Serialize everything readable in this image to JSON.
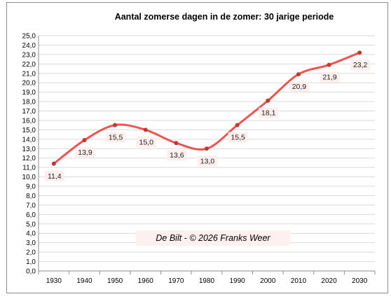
{
  "chart_data": {
    "type": "line",
    "title": "Aantal zomerse dagen in de zomer:  30 jarige periode",
    "xlabel": "",
    "ylabel": "",
    "x": [
      1930,
      1940,
      1950,
      1960,
      1970,
      1980,
      1990,
      2000,
      2010,
      2020,
      2030
    ],
    "series": [
      {
        "values": [
          11.4,
          13.9,
          15.5,
          15.0,
          13.6,
          13.0,
          15.5,
          18.1,
          20.9,
          21.9,
          23.2
        ],
        "data_labels": [
          "11,4",
          "13,9",
          "15,5",
          "15,0",
          "13,6",
          "13,0",
          "15,5",
          "18,1",
          "20,9",
          "21,9",
          "23,2"
        ],
        "color": "#ef5350",
        "marker_color": "#c0392b",
        "smooth": true
      }
    ],
    "x_ticks": [
      "1930",
      "1940",
      "1950",
      "1960",
      "1970",
      "1980",
      "1990",
      "2000",
      "2010",
      "2020",
      "2030"
    ],
    "y_ticks": [
      "0,0",
      "1,0",
      "2,0",
      "3,0",
      "4,0",
      "5,0",
      "6,0",
      "7,0",
      "8,0",
      "9,0",
      "10,0",
      "11,0",
      "12,0",
      "13,0",
      "14,0",
      "15,0",
      "16,0",
      "17,0",
      "18,0",
      "19,0",
      "20,0",
      "21,0",
      "22,0",
      "23,0",
      "24,0",
      "25,0"
    ],
    "ylim": [
      0,
      25
    ],
    "grid": true,
    "legend": "none",
    "annotation": "De Bilt - © 2026 Franks Weer"
  }
}
